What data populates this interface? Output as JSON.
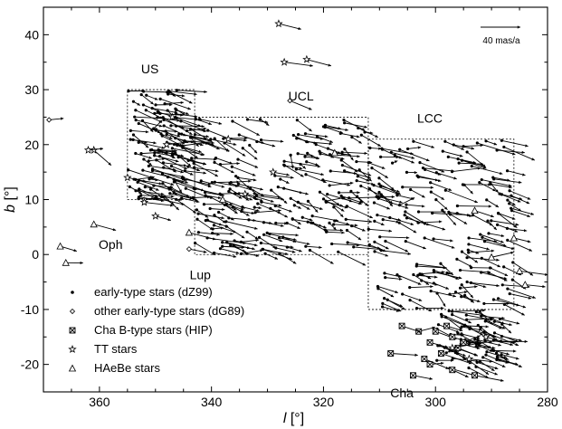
{
  "chart_data": {
    "type": "scatter",
    "xlabel": "l",
    "xlabel_unit": "[°]",
    "ylabel": "b",
    "ylabel_unit": "[°]",
    "xlim": [
      370,
      280
    ],
    "ylim": [
      -25,
      45
    ],
    "x_ticks": [
      360,
      340,
      320,
      300,
      280
    ],
    "y_ticks": [
      -20,
      -10,
      0,
      10,
      20,
      30,
      40
    ],
    "scale_bar_label": "40 mas/a",
    "scale_bar_mas": 40,
    "regions": [
      {
        "name": "US",
        "label": "US",
        "l": [
          343,
          355
        ],
        "b": [
          10,
          30
        ],
        "label_pos": [
          351,
          33
        ]
      },
      {
        "name": "UCL",
        "label": "UCL",
        "l": [
          312,
          343
        ],
        "b": [
          0,
          25
        ],
        "label_pos": [
          324,
          28
        ]
      },
      {
        "name": "LCC",
        "label": "LCC",
        "l": [
          286,
          312
        ],
        "b": [
          -10,
          21
        ],
        "label_pos": [
          301,
          24
        ]
      }
    ],
    "annotations": [
      {
        "text": "Oph",
        "l": 358,
        "b": 1
      },
      {
        "text": "Lup",
        "l": 342,
        "b": -4.5
      },
      {
        "text": "Cha",
        "l": 306,
        "b": -26
      }
    ],
    "legend": [
      {
        "marker": "dot",
        "label": "early-type stars (dZ99)"
      },
      {
        "marker": "open-diamond",
        "label": "other early-type stars (dG89)"
      },
      {
        "marker": "crossed-square",
        "label": "Cha B-type stars (HIP)"
      },
      {
        "marker": "star",
        "label": "TT stars"
      },
      {
        "marker": "triangle",
        "label": "HAeBe stars"
      }
    ],
    "series": [
      {
        "marker": "dot",
        "generated": true,
        "count": 560,
        "clusters": [
          {
            "l": [
              343,
              355
            ],
            "b": [
              10,
              30
            ],
            "n": 130
          },
          {
            "l": [
              312,
              343
            ],
            "b": [
              0,
              25
            ],
            "n": 190
          },
          {
            "l": [
              286,
              312
            ],
            "b": [
              -10,
              21
            ],
            "n": 170
          },
          {
            "l": [
              288,
              300
            ],
            "b": [
              -21,
              -10
            ],
            "n": 70
          }
        ],
        "mean_motion": {
          "dl": -22,
          "db": -7
        }
      },
      {
        "marker": "open-diamond",
        "points": [
          [
            369,
            24.5
          ],
          [
            326,
            28
          ],
          [
            352,
            10
          ],
          [
            344,
            1
          ]
        ]
      },
      {
        "marker": "crossed-square",
        "points": [
          [
            301,
            -16
          ],
          [
            299,
            -18
          ],
          [
            296,
            -17
          ],
          [
            300,
            -14
          ],
          [
            297,
            -15
          ],
          [
            302,
            -19
          ],
          [
            298,
            -13
          ],
          [
            295,
            -16
          ],
          [
            303,
            -14
          ],
          [
            301,
            -20
          ],
          [
            306,
            -13
          ],
          [
            293,
            -22
          ],
          [
            297,
            -21
          ],
          [
            308,
            -18
          ],
          [
            304,
            -22
          ]
        ]
      },
      {
        "marker": "star",
        "points": [
          [
            328,
            42
          ],
          [
            327,
            35
          ],
          [
            323,
            35.5
          ],
          [
            361,
            19
          ],
          [
            362,
            19
          ],
          [
            352,
            9.5
          ],
          [
            355,
            14
          ],
          [
            337,
            21
          ],
          [
            348,
            20
          ],
          [
            334,
            11
          ],
          [
            350,
            7
          ],
          [
            329,
            15
          ],
          [
            297,
            -17
          ],
          [
            294,
            -19
          ],
          [
            291,
            -15
          ],
          [
            347,
            25
          ]
        ]
      },
      {
        "marker": "triangle",
        "points": [
          [
            367,
            1.5
          ],
          [
            366,
            -1.5
          ],
          [
            361,
            5.5
          ],
          [
            338,
            10
          ],
          [
            344,
            4
          ],
          [
            286,
            3
          ],
          [
            290,
            -0.5
          ],
          [
            285,
            -3
          ],
          [
            284,
            -5.5
          ],
          [
            318,
            18.5
          ],
          [
            293,
            8
          ]
        ]
      }
    ]
  }
}
